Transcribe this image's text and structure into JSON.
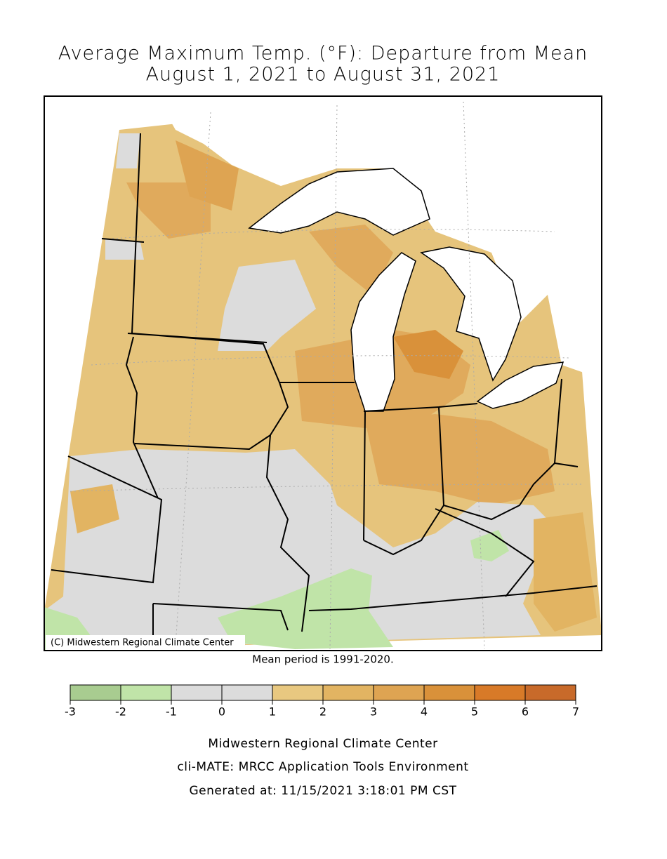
{
  "title": [
    "Average Maximum Temp. (°F): Departure from Mean",
    "August 1, 2021 to August 31, 2021"
  ],
  "map": {
    "credit": "(C) Midwestern Regional Climate Center",
    "note": "Mean period is 1991-2020."
  },
  "colorbar": {
    "ticks": [
      -3,
      -2,
      -1,
      0,
      1,
      2,
      3,
      4,
      5,
      6,
      7
    ],
    "colors": [
      "#a8cc90",
      "#c0e4a8",
      "#dcdcdc",
      "#dcdcdc",
      "#e8c880",
      "#e2b462",
      "#dea452",
      "#d9913a",
      "#d87a28",
      "#c86a2a"
    ]
  },
  "footer": [
    "Midwestern Regional Climate Center",
    "cli-MATE: MRCC Application Tools Environment",
    "Generated at: 11/15/2021 3:18:01 PM CST"
  ]
}
